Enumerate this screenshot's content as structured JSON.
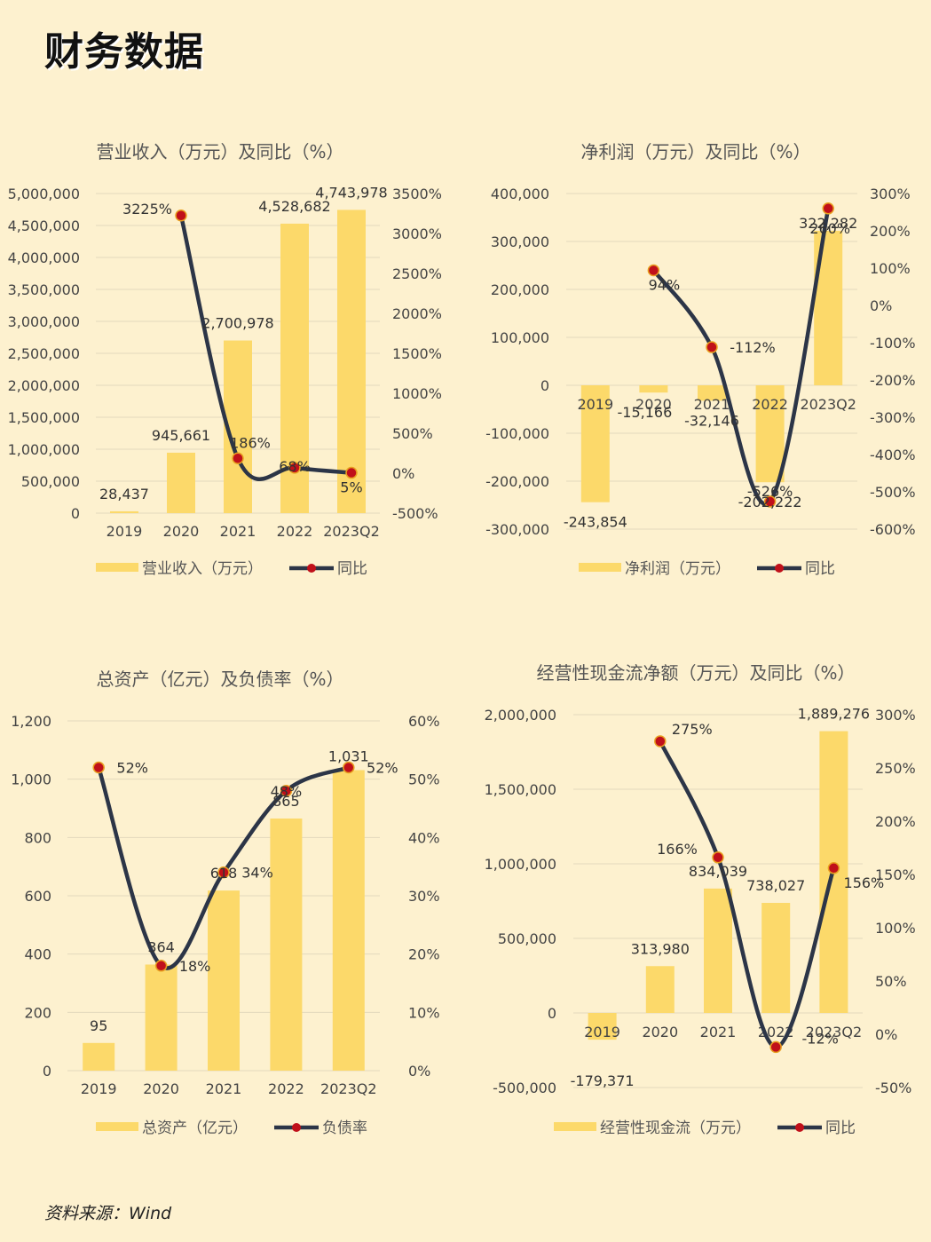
{
  "page": {
    "title": "财务数据",
    "source": "资料来源：Wind"
  },
  "colors": {
    "background": "#fdf1cf",
    "bar": "#fcd96a",
    "line": "#2c3547",
    "marker": "#c0101a",
    "grid": "#e3d9bd"
  },
  "chart_data": [
    {
      "type": "bar+line",
      "title": "营业收入（万元）及同比（%）",
      "categories": [
        "2019",
        "2020",
        "2021",
        "2022",
        "2023Q2"
      ],
      "series": [
        {
          "name": "营业收入（万元）",
          "kind": "bar",
          "axis": "left",
          "values": [
            28437,
            945661,
            2700978,
            4528682,
            4743978
          ],
          "labels": [
            "28,437",
            "945,661",
            "2,700,978",
            "4,528,682",
            "4,743,978"
          ]
        },
        {
          "name": "同比",
          "kind": "line",
          "axis": "right",
          "values": [
            null,
            3225,
            186,
            68,
            5
          ],
          "labels": [
            "",
            "3225%",
            "186%",
            "68%",
            "5%"
          ]
        }
      ],
      "left_axis": {
        "min": 0,
        "max": 5000000,
        "ticks": [
          "0",
          "500,000",
          "1,000,000",
          "1,500,000",
          "2,000,000",
          "2,500,000",
          "3,000,000",
          "3,500,000",
          "4,000,000",
          "4,500,000",
          "5,000,000"
        ]
      },
      "right_axis": {
        "min": -500,
        "max": 3500,
        "ticks": [
          "-500%",
          "0%",
          "500%",
          "1000%",
          "1500%",
          "2000%",
          "2500%",
          "3000%",
          "3500%"
        ]
      },
      "legend": "bottom",
      "grid": true
    },
    {
      "type": "bar+line",
      "title": "净利润（万元）及同比（%）",
      "categories": [
        "2019",
        "2020",
        "2021",
        "2022",
        "2023Q2"
      ],
      "series": [
        {
          "name": "净利润（万元）",
          "kind": "bar",
          "axis": "left",
          "values": [
            -243854,
            -15166,
            -32146,
            -202222,
            322282
          ],
          "labels": [
            "-243,854",
            "-15,166",
            "-32,146",
            "-202,222",
            "322,282"
          ]
        },
        {
          "name": "同比",
          "kind": "line",
          "axis": "right",
          "values": [
            null,
            94,
            -112,
            -526,
            260
          ],
          "labels": [
            "",
            "94%",
            "-112%",
            "-526%",
            "260%"
          ]
        }
      ],
      "left_axis": {
        "min": -300000,
        "max": 400000,
        "ticks": [
          "-300,000",
          "-200,000",
          "-100,000",
          "0",
          "100,000",
          "200,000",
          "300,000",
          "400,000"
        ]
      },
      "right_axis": {
        "min": -600,
        "max": 300,
        "ticks": [
          "-600%",
          "-500%",
          "-400%",
          "-300%",
          "-200%",
          "-100%",
          "0%",
          "100%",
          "200%",
          "300%"
        ]
      },
      "legend": "bottom",
      "grid": true
    },
    {
      "type": "bar+line",
      "title": "总资产（亿元）及负债率（%）",
      "categories": [
        "2019",
        "2020",
        "2021",
        "2022",
        "2023Q2"
      ],
      "series": [
        {
          "name": "总资产（亿元）",
          "kind": "bar",
          "axis": "left",
          "values": [
            95,
            364,
            618,
            865,
            1031
          ],
          "labels": [
            "95",
            "364",
            "618",
            "865",
            "1,031"
          ]
        },
        {
          "name": "负债率",
          "kind": "line",
          "axis": "right",
          "values": [
            52,
            18,
            34,
            48,
            52
          ],
          "labels": [
            "52%",
            "18%",
            "34%",
            "48%",
            "52%"
          ]
        }
      ],
      "left_axis": {
        "min": 0,
        "max": 1200,
        "ticks": [
          "0",
          "200",
          "400",
          "600",
          "800",
          "1,000",
          "1,200"
        ]
      },
      "right_axis": {
        "min": 0,
        "max": 60,
        "ticks": [
          "0%",
          "10%",
          "20%",
          "30%",
          "40%",
          "50%",
          "60%"
        ]
      },
      "legend": "bottom",
      "grid": true
    },
    {
      "type": "bar+line",
      "title": "经营性现金流净额（万元）及同比（%）",
      "categories": [
        "2019",
        "2020",
        "2021",
        "2022",
        "2023Q2"
      ],
      "series": [
        {
          "name": "经营性现金流（万元）",
          "kind": "bar",
          "axis": "left",
          "values": [
            -179371,
            313980,
            834039,
            738027,
            1889276
          ],
          "labels": [
            "-179,371",
            "313,980",
            "834,039",
            "738,027",
            "1,889,276"
          ]
        },
        {
          "name": "同比",
          "kind": "line",
          "axis": "right",
          "values": [
            null,
            275,
            166,
            -12,
            156
          ],
          "labels": [
            "",
            "275%",
            "166%",
            "-12%",
            "156%"
          ]
        }
      ],
      "left_axis": {
        "min": -500000,
        "max": 2000000,
        "ticks": [
          "-500,000",
          "0",
          "500,000",
          "1,000,000",
          "1,500,000",
          "2,000,000"
        ]
      },
      "right_axis": {
        "min": -50,
        "max": 300,
        "ticks": [
          "-50%",
          "0%",
          "50%",
          "100%",
          "150%",
          "200%",
          "250%",
          "300%"
        ]
      },
      "legend": "bottom",
      "grid": true
    }
  ]
}
